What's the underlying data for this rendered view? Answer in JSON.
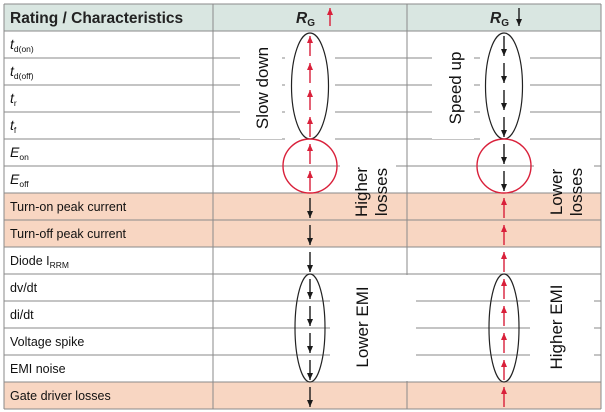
{
  "header": {
    "col1": "Rating / Characteristics",
    "col2": {
      "main": "R",
      "sub": "G",
      "arrow": "up"
    },
    "col3": {
      "main": "R",
      "sub": "G",
      "arrow": "down"
    }
  },
  "rows": [
    {
      "main": "t",
      "sub": "d(on)",
      "italic": true,
      "highlight": false,
      "col2": "up",
      "col3": "down"
    },
    {
      "main": "t",
      "sub": "d(off)",
      "italic": true,
      "highlight": false,
      "col2": "up",
      "col3": "down"
    },
    {
      "main": "t",
      "sub": "r",
      "italic": true,
      "highlight": false,
      "col2": "up",
      "col3": "down"
    },
    {
      "main": "t",
      "sub": "f",
      "italic": true,
      "highlight": false,
      "col2": "up",
      "col3": "down"
    },
    {
      "main": "E",
      "sub": "on",
      "italic": true,
      "highlight": false,
      "col2": "up",
      "col3": "down"
    },
    {
      "main": "E",
      "sub": "off",
      "italic": true,
      "highlight": false,
      "col2": "up",
      "col3": "down"
    },
    {
      "main": "Turn-on peak current",
      "sub": "",
      "italic": false,
      "highlight": true,
      "col2": "down",
      "col3": "up"
    },
    {
      "main": "Turn-off peak current",
      "sub": "",
      "italic": false,
      "highlight": true,
      "col2": "down",
      "col3": "up"
    },
    {
      "main": "Diode I",
      "sub": "RRM",
      "italic": false,
      "highlight": false,
      "col2": "down",
      "col3": "up"
    },
    {
      "main": "dv/dt",
      "sub": "",
      "italic": false,
      "highlight": false,
      "col2": "down",
      "col3": "up"
    },
    {
      "main": "di/dt",
      "sub": "",
      "italic": false,
      "highlight": false,
      "col2": "down",
      "col3": "up"
    },
    {
      "main": "Voltage spike",
      "sub": "",
      "italic": false,
      "highlight": false,
      "col2": "down",
      "col3": "up"
    },
    {
      "main": "EMI noise",
      "sub": "",
      "italic": false,
      "highlight": false,
      "col2": "down",
      "col3": "up"
    },
    {
      "main": "Gate driver losses",
      "sub": "",
      "italic": false,
      "highlight": true,
      "col2": "down",
      "col3": "up"
    }
  ],
  "annotations": {
    "col2_timing": "Slow down",
    "col3_timing": "Speed up",
    "col2_losses": [
      "Higher",
      "losses"
    ],
    "col3_losses": [
      "Lower",
      "losses"
    ],
    "col2_emi": "Lower EMI",
    "col3_emi": "Higher EMI"
  },
  "colors": {
    "header_bg": "#d9e6e1",
    "highlight_bg": "#f8d6c2",
    "up_arrow": "#d9203a",
    "down_arrow": "#1a1a1a",
    "loss_circle": "#d9203a",
    "grid": "#8a8a8a"
  }
}
